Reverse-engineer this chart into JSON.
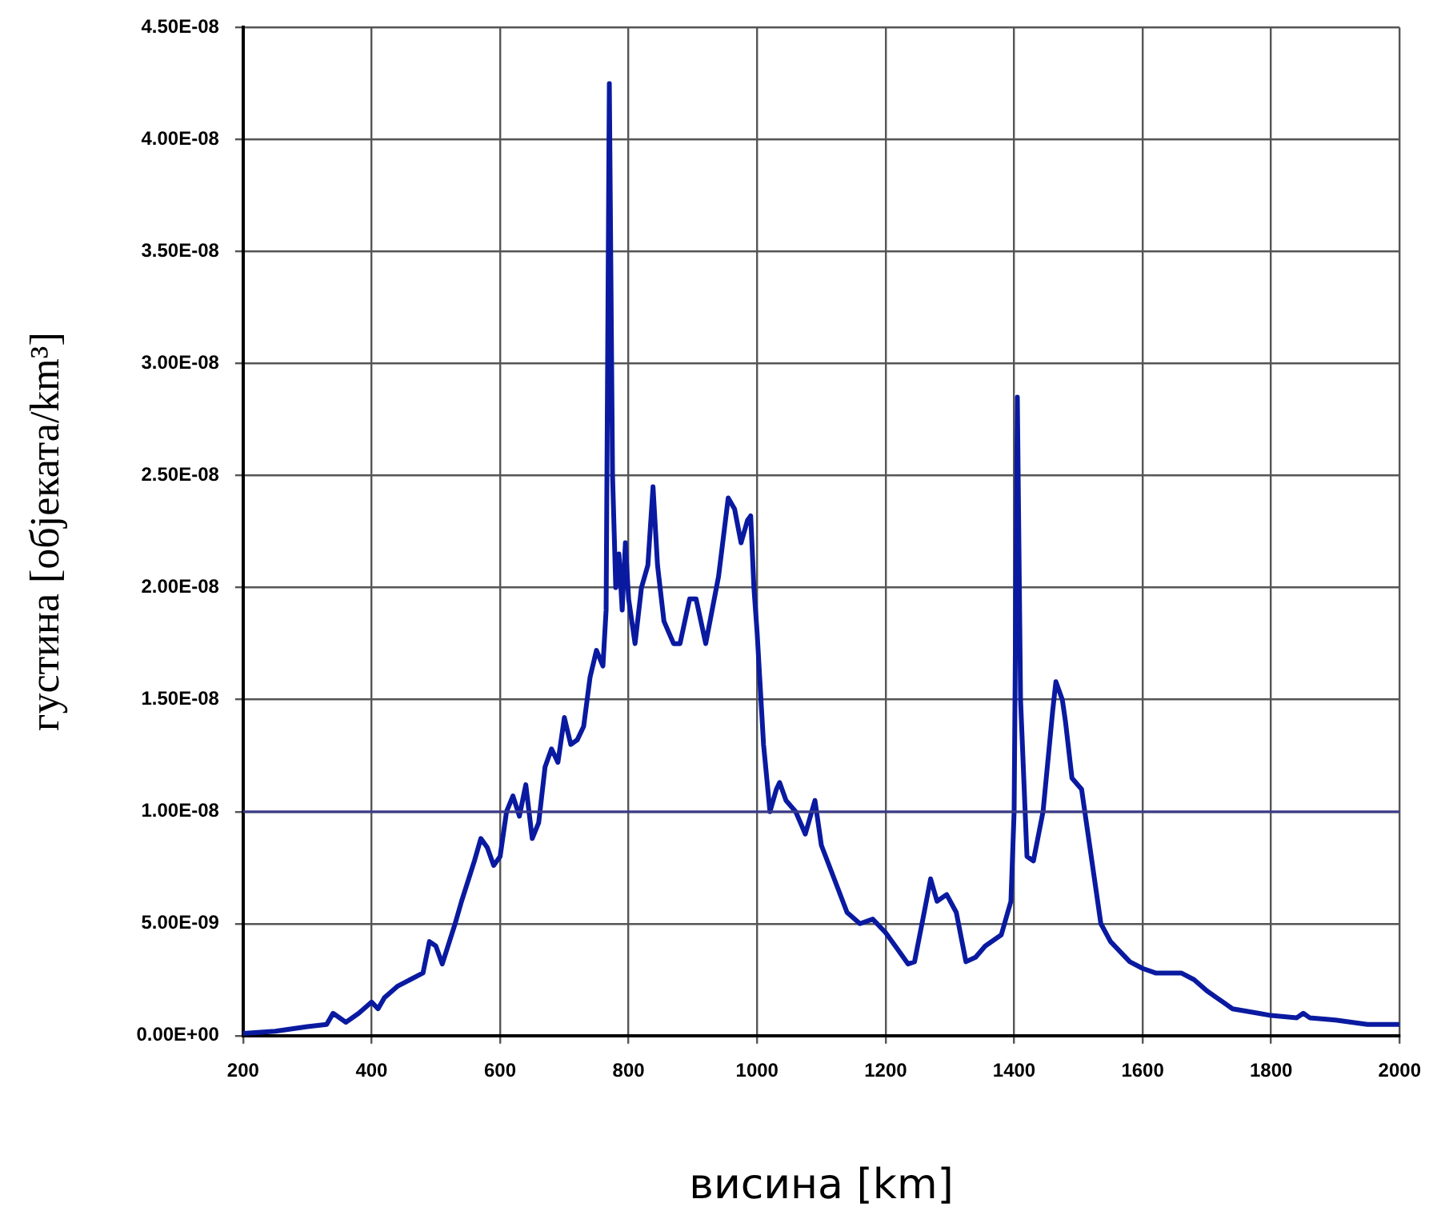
{
  "chart_data": {
    "type": "line",
    "xlabel": "висина [km]",
    "ylabel": "густина [објеката/km³]",
    "xlim": [
      200,
      2000
    ],
    "xticks": [
      200,
      400,
      600,
      800,
      1000,
      1200,
      1400,
      1600,
      1800,
      2000
    ],
    "ylim": [
      0,
      4.5e-08
    ],
    "yticks": [
      {
        "value": 0,
        "label": "0.00E+00"
      },
      {
        "value": 5e-09,
        "label": "5.00E-09"
      },
      {
        "value": 1e-08,
        "label": "1.00E-08"
      },
      {
        "value": 1.5e-08,
        "label": "1.50E-08"
      },
      {
        "value": 2e-08,
        "label": "2.00E-08"
      },
      {
        "value": 2.5e-08,
        "label": "2.50E-08"
      },
      {
        "value": 3e-08,
        "label": "3.00E-08"
      },
      {
        "value": 3.5e-08,
        "label": "3.50E-08"
      },
      {
        "value": 4e-08,
        "label": "4.00E-08"
      },
      {
        "value": 4.5e-08,
        "label": "4.50E-08"
      }
    ],
    "grid": true,
    "legend": false,
    "marker": "none",
    "line_style": "solid",
    "ref_lines": [
      {
        "axis": "y",
        "value": 1e-08,
        "color": "#3a3a8c"
      }
    ],
    "series": [
      {
        "color": "#0a1aa0",
        "x": [
          200,
          250,
          300,
          330,
          340,
          360,
          380,
          400,
          410,
          420,
          440,
          460,
          480,
          490,
          500,
          510,
          530,
          540,
          560,
          570,
          580,
          590,
          600,
          610,
          620,
          630,
          640,
          650,
          660,
          670,
          680,
          690,
          700,
          710,
          720,
          730,
          740,
          750,
          760,
          765,
          770,
          775,
          780,
          785,
          790,
          795,
          800,
          810,
          820,
          830,
          838,
          845,
          855,
          870,
          880,
          895,
          905,
          920,
          940,
          955,
          965,
          975,
          985,
          990,
          995,
          1000,
          1010,
          1020,
          1030,
          1035,
          1045,
          1060,
          1075,
          1090,
          1100,
          1120,
          1140,
          1160,
          1180,
          1200,
          1220,
          1235,
          1245,
          1260,
          1270,
          1280,
          1295,
          1310,
          1325,
          1340,
          1355,
          1380,
          1395,
          1400,
          1405,
          1410,
          1420,
          1430,
          1445,
          1460,
          1465,
          1475,
          1480,
          1490,
          1505,
          1520,
          1535,
          1550,
          1580,
          1600,
          1620,
          1640,
          1660,
          1680,
          1700,
          1740,
          1780,
          1800,
          1840,
          1850,
          1860,
          1900,
          1950,
          2000
        ],
        "values": [
          1e-10,
          2e-10,
          4e-10,
          5e-10,
          1e-09,
          6e-10,
          1e-09,
          1.5e-09,
          1.2e-09,
          1.7e-09,
          2.2e-09,
          2.5e-09,
          2.8e-09,
          4.2e-09,
          4e-09,
          3.2e-09,
          5e-09,
          6e-09,
          7.8e-09,
          8.8e-09,
          8.4e-09,
          7.6e-09,
          8e-09,
          1e-08,
          1.07e-08,
          9.8e-09,
          1.12e-08,
          8.8e-09,
          9.5e-09,
          1.2e-08,
          1.28e-08,
          1.22e-08,
          1.42e-08,
          1.3e-08,
          1.32e-08,
          1.38e-08,
          1.6e-08,
          1.72e-08,
          1.65e-08,
          1.9e-08,
          4.25e-08,
          2.5e-08,
          2e-08,
          2.15e-08,
          1.9e-08,
          2.2e-08,
          1.95e-08,
          1.75e-08,
          2e-08,
          2.1e-08,
          2.45e-08,
          2.1e-08,
          1.85e-08,
          1.75e-08,
          1.75e-08,
          1.95e-08,
          1.95e-08,
          1.75e-08,
          2.05e-08,
          2.4e-08,
          2.35e-08,
          2.2e-08,
          2.3e-08,
          2.32e-08,
          2e-08,
          1.8e-08,
          1.3e-08,
          1e-08,
          1.1e-08,
          1.13e-08,
          1.05e-08,
          1e-08,
          9e-09,
          1.05e-08,
          8.5e-09,
          7e-09,
          5.5e-09,
          5e-09,
          5.2e-09,
          4.6e-09,
          3.8e-09,
          3.2e-09,
          3.3e-09,
          5.5e-09,
          7e-09,
          6e-09,
          6.3e-09,
          5.5e-09,
          3.3e-09,
          3.5e-09,
          4e-09,
          4.5e-09,
          6e-09,
          1e-08,
          2.85e-08,
          1.5e-08,
          8e-09,
          7.8e-09,
          1e-08,
          1.45e-08,
          1.58e-08,
          1.5e-08,
          1.4e-08,
          1.15e-08,
          1.1e-08,
          8e-09,
          5e-09,
          4.2e-09,
          3.3e-09,
          3e-09,
          2.8e-09,
          2.8e-09,
          2.8e-09,
          2.5e-09,
          2e-09,
          1.2e-09,
          1e-09,
          9e-10,
          8e-10,
          1e-09,
          8e-10,
          7e-10,
          5e-10,
          5e-10
        ]
      }
    ]
  }
}
